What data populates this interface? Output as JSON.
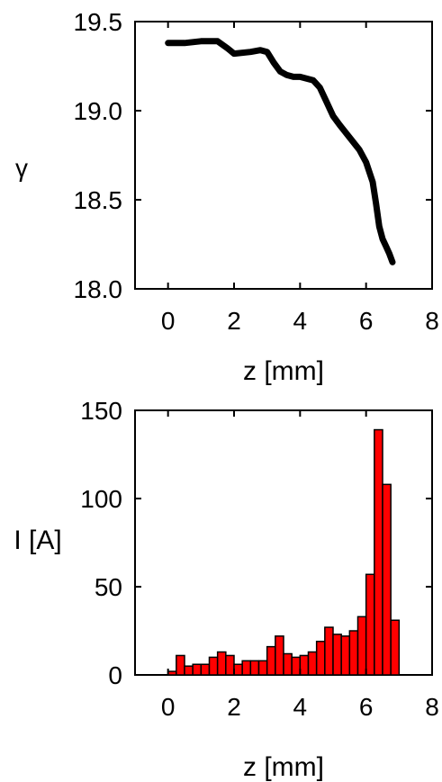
{
  "chart_data": [
    {
      "type": "line",
      "title": "",
      "xlabel": "z [mm]",
      "ylabel": "γ",
      "xlim": [
        -1,
        8
      ],
      "ylim": [
        18.0,
        19.5
      ],
      "xticks": [
        "0",
        "2",
        "4",
        "6",
        "8"
      ],
      "yticks": [
        "18.0",
        "18.5",
        "19.0",
        "19.5"
      ],
      "grid": false,
      "series": [
        {
          "color": "#000000",
          "x": [
            0.0,
            0.5,
            1.0,
            1.5,
            1.8,
            2.0,
            2.5,
            2.8,
            3.0,
            3.2,
            3.4,
            3.6,
            3.8,
            4.0,
            4.4,
            4.6,
            4.8,
            5.0,
            5.2,
            5.5,
            5.8,
            6.0,
            6.2,
            6.3,
            6.4,
            6.5,
            6.6,
            6.7,
            6.8
          ],
          "y": [
            19.38,
            19.38,
            19.39,
            19.39,
            19.35,
            19.32,
            19.33,
            19.34,
            19.33,
            19.27,
            19.22,
            19.2,
            19.19,
            19.19,
            19.17,
            19.13,
            19.05,
            18.97,
            18.92,
            18.85,
            18.78,
            18.71,
            18.6,
            18.48,
            18.35,
            18.28,
            18.24,
            18.2,
            18.15
          ]
        }
      ]
    },
    {
      "type": "bar",
      "title": "",
      "xlabel": "z [mm]",
      "ylabel": "I [A]",
      "xlim": [
        -1,
        8
      ],
      "ylim": [
        0,
        150
      ],
      "xticks": [
        "0",
        "2",
        "4",
        "6",
        "8"
      ],
      "yticks": [
        "0",
        "50",
        "100",
        "150"
      ],
      "grid": false,
      "bar_width": 0.25,
      "color": "#ff0000",
      "series": [
        {
          "x": [
            0.125,
            0.375,
            0.625,
            0.875,
            1.125,
            1.375,
            1.625,
            1.875,
            2.125,
            2.375,
            2.625,
            2.875,
            3.125,
            3.375,
            3.625,
            3.875,
            4.125,
            4.375,
            4.625,
            4.875,
            5.125,
            5.375,
            5.625,
            5.875,
            6.125,
            6.375,
            6.625,
            6.875
          ],
          "values": [
            2,
            11,
            5,
            6,
            6,
            10,
            13,
            11,
            6,
            8,
            8,
            8,
            16,
            22,
            12,
            10,
            11,
            13,
            19,
            27,
            23,
            22,
            25,
            33,
            57,
            139,
            108,
            31
          ]
        }
      ]
    }
  ]
}
